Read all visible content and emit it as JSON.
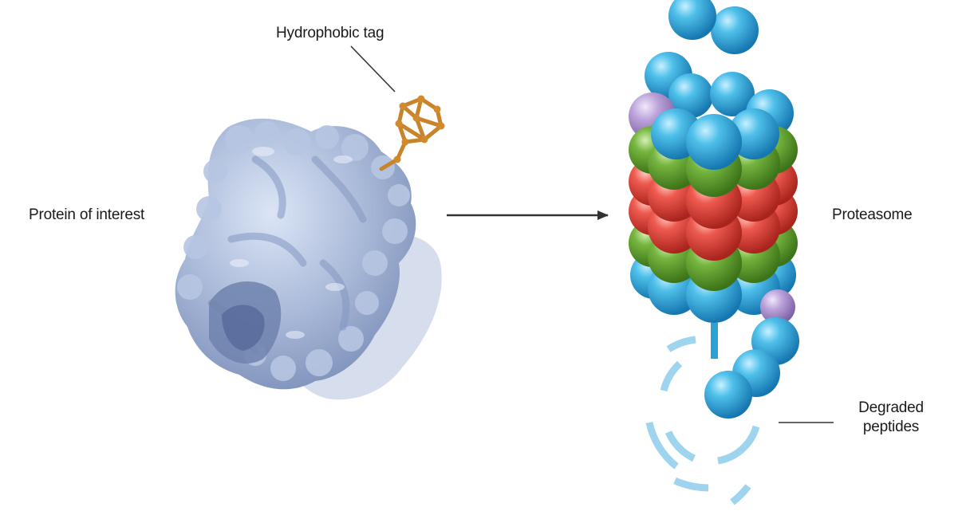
{
  "labels": {
    "hydrophobic_tag": "Hydrophobic tag",
    "protein_of_interest": "Protein of interest",
    "proteasome": "Proteasome",
    "degraded_peptides_line1": "Degraded",
    "degraded_peptides_line2": "peptides"
  },
  "colors": {
    "protein": "#a9b9d8",
    "protein_shadow": "#6f83ad",
    "tag": "#c9842b",
    "blue_subunit": "#29a3d6",
    "green_subunit": "#5e9f31",
    "red_subunit": "#e0443d",
    "lilac_subunit": "#b49bd0",
    "peptide_fragment": "#9fd4ee",
    "arrow": "#333333"
  }
}
